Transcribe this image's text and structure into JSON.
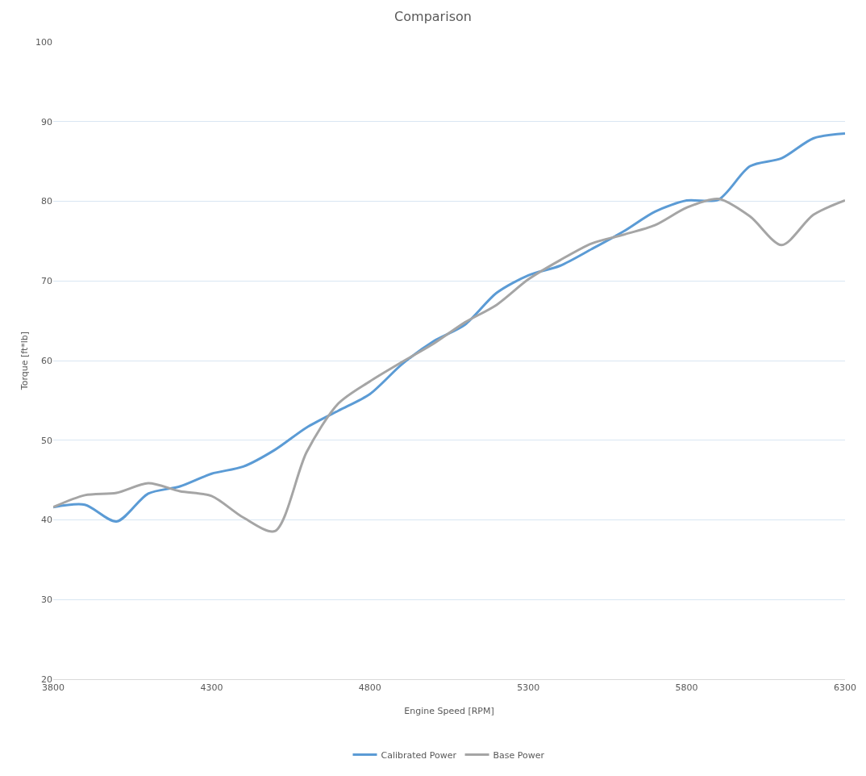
{
  "chart_data": {
    "type": "line",
    "title": "Comparison",
    "xlabel": "Engine Speed [RPM]",
    "ylabel": "Torque [ft*lb]",
    "x": [
      3800,
      3900,
      4000,
      4100,
      4200,
      4300,
      4400,
      4500,
      4600,
      4700,
      4800,
      4900,
      5000,
      5100,
      5200,
      5300,
      5400,
      5500,
      5600,
      5700,
      5800,
      5900,
      6000,
      6100,
      6200,
      6300
    ],
    "series": [
      {
        "name": "Calibrated Power",
        "color": "#5b9bd5",
        "values": [
          41.6,
          41.9,
          39.8,
          43.3,
          44.2,
          45.8,
          46.7,
          48.8,
          51.6,
          53.7,
          55.8,
          59.5,
          62.4,
          64.5,
          68.5,
          70.7,
          71.9,
          74,
          76.2,
          78.7,
          80.1,
          80.2,
          84.4,
          85.4,
          87.9,
          88.5
        ]
      },
      {
        "name": "Base Power",
        "color": "#a5a5a5",
        "values": [
          41.6,
          43.1,
          43.4,
          44.6,
          43.6,
          43,
          40.3,
          38.6,
          48.5,
          54.6,
          57.4,
          59.8,
          62.1,
          64.8,
          67,
          70.2,
          72.6,
          74.7,
          75.8,
          77,
          79.2,
          80.3,
          78.1,
          74.5,
          78.3,
          80.1
        ]
      }
    ],
    "xlim": [
      3800,
      6300
    ],
    "xticks": [
      3800,
      4300,
      4800,
      5300,
      5800,
      6300
    ],
    "ylim": [
      20,
      100
    ],
    "yticks": [
      20,
      30,
      40,
      50,
      60,
      70,
      80,
      90,
      100
    ],
    "grid": "y",
    "legend": "bottom",
    "marker": "none",
    "line_style": "solid"
  }
}
